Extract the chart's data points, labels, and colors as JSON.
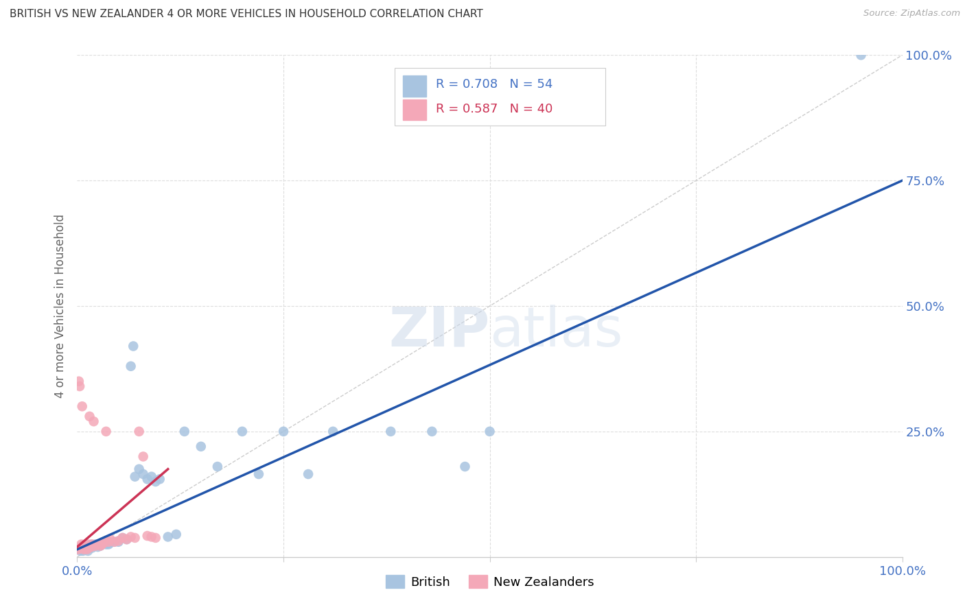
{
  "title": "BRITISH VS NEW ZEALANDER 4 OR MORE VEHICLES IN HOUSEHOLD CORRELATION CHART",
  "source": "Source: ZipAtlas.com",
  "ylabel": "4 or more Vehicles in Household",
  "watermark_zip": "ZIP",
  "watermark_atlas": "atlas",
  "xlim": [
    0,
    1
  ],
  "ylim": [
    0,
    1
  ],
  "xtick_labels": [
    "0.0%",
    "",
    "",
    "",
    "100.0%"
  ],
  "xtick_vals": [
    0,
    0.25,
    0.5,
    0.75,
    1.0
  ],
  "ytick_left_labels": [
    "",
    "",
    "",
    "",
    ""
  ],
  "ytick_vals": [
    0,
    0.25,
    0.5,
    0.75,
    1.0
  ],
  "ytick_right_labels": [
    "",
    "25.0%",
    "50.0%",
    "75.0%",
    "100.0%"
  ],
  "british_color": "#a8c4e0",
  "nz_color": "#f4a8b8",
  "british_line_color": "#2255aa",
  "nz_line_color": "#cc3355",
  "diag_color": "#cccccc",
  "tick_color": "#4472c4",
  "grid_color": "#dddddd",
  "axis_bottom_color": "#cccccc",
  "R_british": 0.708,
  "N_british": 54,
  "R_nz": 0.587,
  "N_nz": 40,
  "british_line_x0": 0.0,
  "british_line_y0": 0.015,
  "british_line_x1": 1.0,
  "british_line_y1": 0.75,
  "nz_line_x0": 0.0,
  "nz_line_y0": 0.02,
  "nz_line_x1": 0.11,
  "nz_line_y1": 0.175,
  "british_x": [
    0.002,
    0.003,
    0.004,
    0.005,
    0.006,
    0.007,
    0.008,
    0.009,
    0.01,
    0.011,
    0.012,
    0.013,
    0.014,
    0.015,
    0.016,
    0.017,
    0.018,
    0.02,
    0.022,
    0.025,
    0.028,
    0.03,
    0.032,
    0.035,
    0.038,
    0.04,
    0.045,
    0.05,
    0.055,
    0.06,
    0.065,
    0.068,
    0.07,
    0.075,
    0.08,
    0.085,
    0.09,
    0.095,
    0.1,
    0.11,
    0.12,
    0.13,
    0.15,
    0.17,
    0.2,
    0.22,
    0.25,
    0.28,
    0.31,
    0.38,
    0.43,
    0.47,
    0.5,
    0.95
  ],
  "british_y": [
    0.015,
    0.018,
    0.012,
    0.015,
    0.018,
    0.012,
    0.022,
    0.015,
    0.02,
    0.018,
    0.015,
    0.012,
    0.018,
    0.02,
    0.022,
    0.025,
    0.018,
    0.022,
    0.025,
    0.02,
    0.022,
    0.025,
    0.028,
    0.025,
    0.025,
    0.028,
    0.03,
    0.03,
    0.038,
    0.035,
    0.38,
    0.42,
    0.16,
    0.175,
    0.165,
    0.155,
    0.16,
    0.15,
    0.155,
    0.04,
    0.045,
    0.25,
    0.22,
    0.18,
    0.25,
    0.165,
    0.25,
    0.165,
    0.25,
    0.25,
    0.25,
    0.18,
    0.25,
    1.0
  ],
  "nz_x": [
    0.001,
    0.002,
    0.003,
    0.004,
    0.005,
    0.005,
    0.006,
    0.006,
    0.007,
    0.007,
    0.008,
    0.009,
    0.01,
    0.011,
    0.012,
    0.013,
    0.014,
    0.015,
    0.017,
    0.018,
    0.02,
    0.022,
    0.025,
    0.028,
    0.03,
    0.032,
    0.035,
    0.038,
    0.04,
    0.045,
    0.05,
    0.055,
    0.06,
    0.065,
    0.07,
    0.075,
    0.08,
    0.085,
    0.09,
    0.095
  ],
  "nz_y": [
    0.015,
    0.35,
    0.34,
    0.018,
    0.025,
    0.018,
    0.022,
    0.3,
    0.018,
    0.02,
    0.015,
    0.018,
    0.02,
    0.022,
    0.015,
    0.025,
    0.018,
    0.28,
    0.02,
    0.025,
    0.27,
    0.022,
    0.025,
    0.022,
    0.025,
    0.028,
    0.25,
    0.03,
    0.035,
    0.03,
    0.032,
    0.038,
    0.035,
    0.04,
    0.038,
    0.25,
    0.2,
    0.042,
    0.04,
    0.038
  ]
}
